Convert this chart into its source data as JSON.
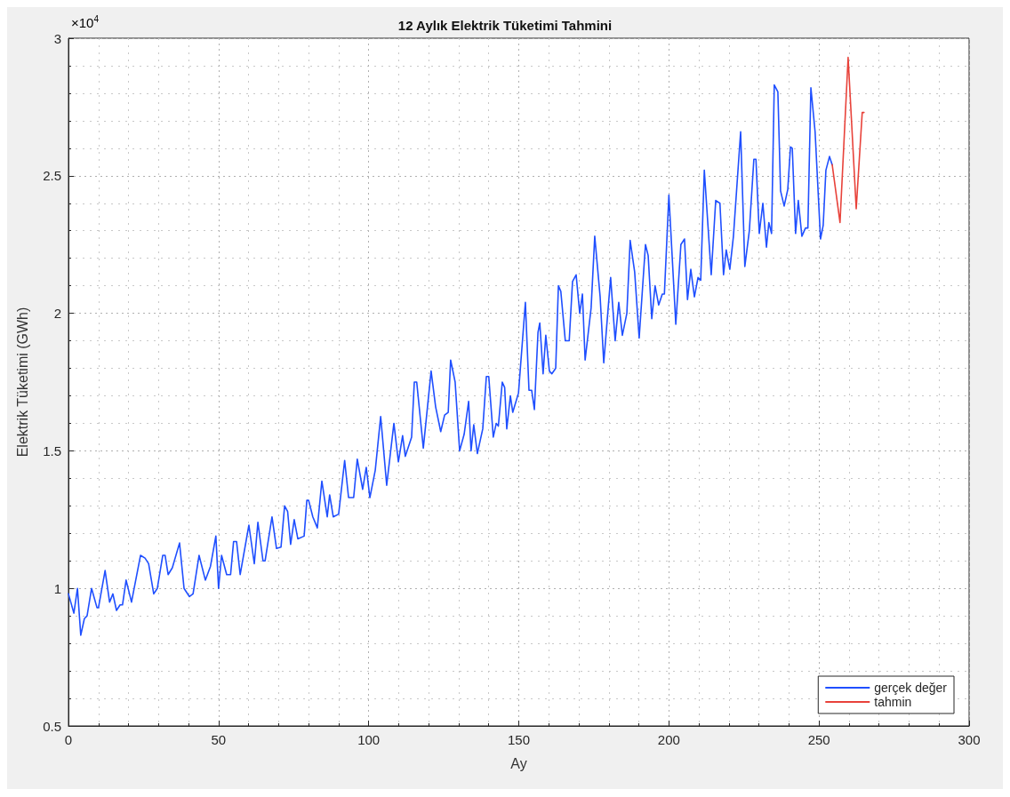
{
  "chart_data": {
    "type": "line",
    "title": "12 Aylık Elektrik Tüketimi Tahmini",
    "xlabel": "Ay",
    "ylabel": "Elektrik Tüketimi (GWh)",
    "annotations": [
      "×10$^{4}$"
    ],
    "xlim": [
      0,
      300
    ],
    "xticks": [
      0,
      50,
      100,
      150,
      200,
      250,
      300
    ],
    "ylim": [
      0.5,
      3
    ],
    "yticks": [
      0.5,
      1,
      1.5,
      2,
      2.5,
      3
    ],
    "grid": true,
    "legend": "bottom right",
    "marker": "none",
    "line_style": "solid",
    "series": [
      {
        "name": "gerçek değer",
        "color": "#1f4fff",
        "x": [
          0,
          1.8,
          3,
          4.1,
          5.3,
          6.2,
          7.7,
          9.5,
          10,
          12.2,
          13.7,
          14.8,
          16,
          17.2,
          18,
          19.2,
          21,
          24,
          25.5,
          26.7,
          28.4,
          29.6,
          31.4,
          32.2,
          33.2,
          34.6,
          37,
          38.5,
          40.3,
          41.5,
          43.5,
          45.6,
          47.3,
          49.1,
          50,
          51,
          52.7,
          54,
          55,
          56,
          57.2,
          60.1,
          61.9,
          63.1,
          64.8,
          65.5,
          67.8,
          69.3,
          70.8,
          72,
          73,
          74,
          75.2,
          76.4,
          78.5,
          79.4,
          80,
          81.4,
          82.9,
          84.4,
          86.2,
          87,
          88.2,
          90,
          92,
          93.3,
          95,
          96.2,
          98,
          99.2,
          100.4,
          102.2,
          104,
          106,
          108.4,
          109.9,
          111.3,
          112.2,
          114.3,
          115.2,
          116,
          118.2,
          120.8,
          122.3,
          124,
          125.3,
          126.5,
          127.3,
          128.8,
          130.3,
          131.8,
          133.3,
          134.1,
          135,
          136.2,
          138,
          139.2,
          140,
          141.5,
          142.5,
          143.2,
          144.5,
          145.3,
          146,
          147.2,
          148,
          149.9,
          152.2,
          153.4,
          154.3,
          155.2,
          156.4,
          157,
          158.1,
          159,
          160.2,
          161,
          162.3,
          163.2,
          164,
          165.5,
          166.8,
          167.9,
          169.1,
          170.3,
          171.2,
          172.1,
          174.1,
          175.3,
          177.1,
          178.3,
          180.6,
          182.1,
          183.3,
          184.5,
          186,
          187.1,
          188.6,
          190.1,
          192.2,
          193.1,
          194.3,
          195.4,
          196.6,
          197.8,
          198.5,
          200,
          202.3,
          204,
          205.2,
          206.2,
          207.3,
          208.5,
          209.7,
          210.6,
          211.8,
          214.1,
          215.6,
          217,
          218.2,
          219.1,
          220.3,
          221.5,
          223.9,
          225.3,
          226.8,
          228.3,
          229,
          230.1,
          231.3,
          232.5,
          233.3,
          234.2,
          235.1,
          236.3,
          237.2,
          238.4,
          239.6,
          240.5,
          241.1,
          242.2,
          243.1,
          244.3,
          245.5,
          246.3,
          247.3,
          248.7,
          250.5,
          251.4,
          252.3,
          253.5,
          254.4
        ],
        "values": [
          0.98,
          0.91,
          1.0,
          0.83,
          0.89,
          0.9,
          1.0,
          0.93,
          0.93,
          1.065,
          0.95,
          0.98,
          0.92,
          0.94,
          0.94,
          1.03,
          0.95,
          1.12,
          1.11,
          1.09,
          0.98,
          1.0,
          1.12,
          1.12,
          1.05,
          1.075,
          1.165,
          1.0,
          0.97,
          0.98,
          1.12,
          1.03,
          1.08,
          1.19,
          1.0,
          1.12,
          1.05,
          1.05,
          1.17,
          1.17,
          1.05,
          1.23,
          1.09,
          1.24,
          1.1,
          1.1,
          1.26,
          1.145,
          1.15,
          1.3,
          1.28,
          1.16,
          1.25,
          1.18,
          1.19,
          1.32,
          1.32,
          1.26,
          1.22,
          1.39,
          1.26,
          1.34,
          1.26,
          1.27,
          1.465,
          1.33,
          1.33,
          1.47,
          1.36,
          1.44,
          1.33,
          1.43,
          1.625,
          1.375,
          1.6,
          1.46,
          1.555,
          1.48,
          1.55,
          1.75,
          1.75,
          1.51,
          1.79,
          1.66,
          1.57,
          1.63,
          1.64,
          1.83,
          1.75,
          1.5,
          1.56,
          1.68,
          1.5,
          1.595,
          1.49,
          1.58,
          1.77,
          1.77,
          1.55,
          1.6,
          1.59,
          1.75,
          1.73,
          1.58,
          1.7,
          1.64,
          1.71,
          2.04,
          1.72,
          1.72,
          1.65,
          1.93,
          1.965,
          1.78,
          1.92,
          1.79,
          1.78,
          1.8,
          2.1,
          2.08,
          1.9,
          1.9,
          2.115,
          2.14,
          2.0,
          2.07,
          1.83,
          2.02,
          2.28,
          2.06,
          1.82,
          2.13,
          1.9,
          2.04,
          1.92,
          2.0,
          2.265,
          2.15,
          1.91,
          2.25,
          2.21,
          1.98,
          2.1,
          2.03,
          2.07,
          2.07,
          2.43,
          1.96,
          2.25,
          2.27,
          2.05,
          2.16,
          2.06,
          2.13,
          2.12,
          2.52,
          2.14,
          2.41,
          2.4,
          2.14,
          2.23,
          2.16,
          2.28,
          2.66,
          2.17,
          2.3,
          2.56,
          2.56,
          2.29,
          2.4,
          2.24,
          2.33,
          2.29,
          2.83,
          2.805,
          2.445,
          2.39,
          2.45,
          2.605,
          2.6,
          2.29,
          2.41,
          2.28,
          2.31,
          2.31,
          2.82,
          2.66,
          2.27,
          2.32,
          2.52,
          2.57,
          2.54
        ]
      },
      {
        "name": "tahmin",
        "color": "#e8423a",
        "x": [
          254.4,
          257,
          259.7,
          262.4,
          264.4,
          265
        ],
        "values": [
          2.54,
          2.33,
          2.93,
          2.38,
          2.73,
          2.73
        ]
      }
    ]
  }
}
